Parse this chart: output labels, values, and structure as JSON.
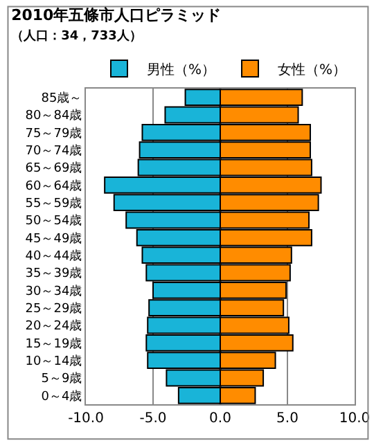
{
  "chart_data": {
    "type": "bar",
    "orientation": "horizontal",
    "title": "2010年五條市人口ピラミッド",
    "subtitle": "（人口：34，733人）",
    "categories": [
      "85歳～",
      "80～84歳",
      "75～79歳",
      "70～74歳",
      "65～69歳",
      "60～64歳",
      "55～59歳",
      "50～54歳",
      "45～49歳",
      "40～44歳",
      "35～39歳",
      "30～34歳",
      "25～29歳",
      "20～24歳",
      "15～19歳",
      "10～14歳",
      "5～9歳",
      "0～4歳"
    ],
    "series": [
      {
        "name": "男性（%）",
        "color": "#19b4d8",
        "values": [
          -2.6,
          -4.1,
          -5.8,
          -6.0,
          -6.1,
          -8.6,
          -7.9,
          -7.0,
          -6.2,
          -5.8,
          -5.5,
          -5.0,
          -5.3,
          -5.4,
          -5.5,
          -5.4,
          -4.0,
          -3.1
        ]
      },
      {
        "name": "女性（%）",
        "color": "#ff8c00",
        "values": [
          6.1,
          5.8,
          6.7,
          6.7,
          6.8,
          7.5,
          7.3,
          6.6,
          6.8,
          5.3,
          5.2,
          4.9,
          4.7,
          5.1,
          5.4,
          4.1,
          3.2,
          2.6
        ]
      }
    ],
    "xlim": [
      -10,
      10
    ],
    "xticks": [
      {
        "value": -10,
        "label": "-10.0"
      },
      {
        "value": -5,
        "label": "-5.0"
      },
      {
        "value": 0,
        "label": "0.0"
      },
      {
        "value": 5,
        "label": "5.0"
      },
      {
        "value": 10,
        "label": "10.0"
      }
    ],
    "grid": "x",
    "legend": "top right",
    "stacked": true
  }
}
